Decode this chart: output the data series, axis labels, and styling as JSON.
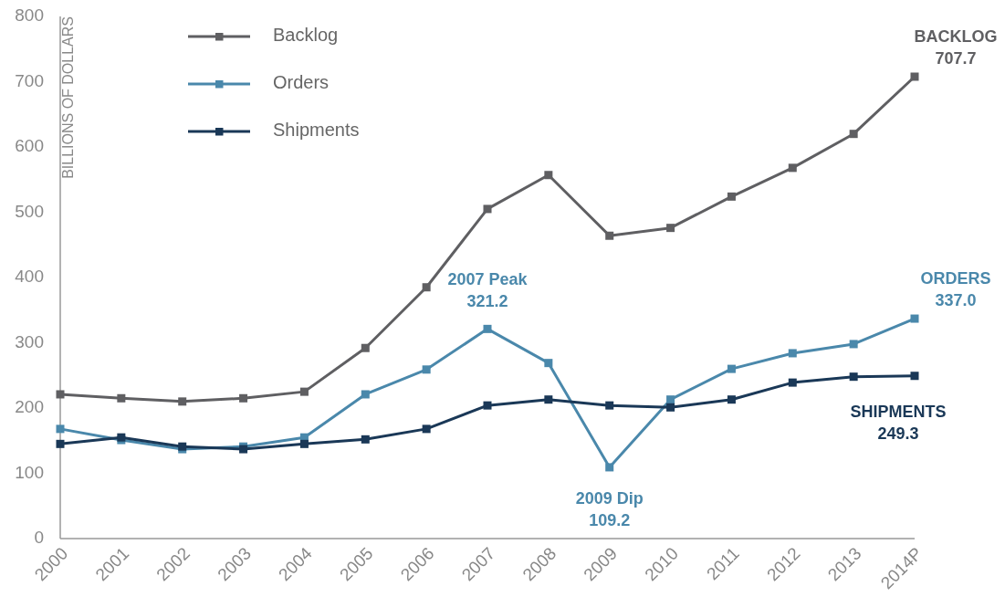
{
  "chart_data": {
    "type": "line",
    "ylabel": "BILLIONS OF DOLLARS",
    "categories": [
      "2000",
      "2001",
      "2002",
      "2003",
      "2004",
      "2005",
      "2006",
      "2007",
      "2008",
      "2009",
      "2010",
      "2011",
      "2012",
      "2013",
      "2014P"
    ],
    "series": [
      {
        "name": "Backlog",
        "color": "#5f5f62",
        "values": [
          221,
          215,
          210,
          215,
          225,
          292,
          385,
          505,
          557,
          464,
          476,
          524,
          568,
          620,
          707.7
        ]
      },
      {
        "name": "Orders",
        "color": "#4a88ab",
        "values": [
          168,
          151,
          137,
          141,
          155,
          221,
          259,
          321.2,
          269,
          109.2,
          213,
          260,
          284,
          298,
          337.0
        ]
      },
      {
        "name": "Shipments",
        "color": "#1a3857",
        "values": [
          145,
          155,
          141,
          137,
          145,
          152,
          168,
          204,
          213,
          204,
          201,
          213,
          239,
          248,
          249.3
        ]
      }
    ],
    "ylim": [
      0,
      800
    ],
    "yticks": [
      0,
      100,
      200,
      300,
      400,
      500,
      600,
      700,
      800
    ],
    "grid": false,
    "legend": "top left",
    "marker": "square",
    "line_style": "solid",
    "annotations": [
      {
        "text": "2007 Peak\n321.2",
        "x": "2007",
        "y": 321.2
      },
      {
        "text": "2009 Dip\n109.2",
        "x": "2009",
        "y": 109.2
      },
      {
        "text": "BACKLOG\n707.7",
        "x": "2014P",
        "y": 707.7
      },
      {
        "text": "ORDERS\n337.0",
        "x": "2014P",
        "y": 337.0
      },
      {
        "text": "SHIPMENTS\n249.3",
        "x": "2014P",
        "y": 249.3
      }
    ]
  }
}
